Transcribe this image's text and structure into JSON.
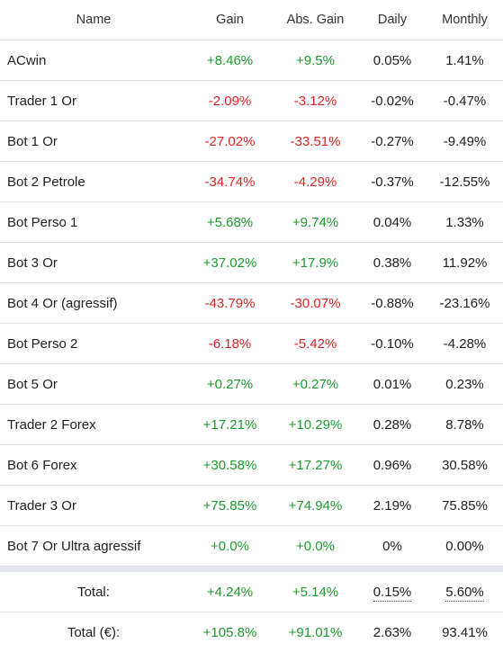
{
  "headers": {
    "name": "Name",
    "gain": "Gain",
    "abs_gain": "Abs. Gain",
    "daily": "Daily",
    "monthly": "Monthly"
  },
  "rows": [
    {
      "name": "ACwin",
      "gain": "+8.46%",
      "abs_gain": "+9.5%",
      "daily": "0.05%",
      "monthly": "1.41%",
      "trend": "positive"
    },
    {
      "name": "Trader 1 Or",
      "gain": "-2.09%",
      "abs_gain": "-3.12%",
      "daily": "-0.02%",
      "monthly": "-0.47%",
      "trend": "negative"
    },
    {
      "name": "Bot 1 Or",
      "gain": "-27.02%",
      "abs_gain": "-33.51%",
      "daily": "-0.27%",
      "monthly": "-9.49%",
      "trend": "negative"
    },
    {
      "name": "Bot 2 Petrole",
      "gain": "-34.74%",
      "abs_gain": "-4.29%",
      "daily": "-0.37%",
      "monthly": "-12.55%",
      "trend": "negative"
    },
    {
      "name": "Bot Perso 1",
      "gain": "+5.68%",
      "abs_gain": "+9.74%",
      "daily": "0.04%",
      "monthly": "1.33%",
      "trend": "positive"
    },
    {
      "name": "Bot 3 Or",
      "gain": "+37.02%",
      "abs_gain": "+17.9%",
      "daily": "0.38%",
      "monthly": "11.92%",
      "trend": "positive"
    },
    {
      "name": "Bot 4 Or (agressif)",
      "gain": "-43.79%",
      "abs_gain": "-30.07%",
      "daily": "-0.88%",
      "monthly": "-23.16%",
      "trend": "negative"
    },
    {
      "name": "Bot Perso 2",
      "gain": "-6.18%",
      "abs_gain": "-5.42%",
      "daily": "-0.10%",
      "monthly": "-4.28%",
      "trend": "negative"
    },
    {
      "name": "Bot 5 Or",
      "gain": "+0.27%",
      "abs_gain": "+0.27%",
      "daily": "0.01%",
      "monthly": "0.23%",
      "trend": "positive"
    },
    {
      "name": "Trader 2 Forex",
      "gain": "+17.21%",
      "abs_gain": "+10.29%",
      "daily": "0.28%",
      "monthly": "8.78%",
      "trend": "positive"
    },
    {
      "name": "Bot 6 Forex",
      "gain": "+30.58%",
      "abs_gain": "+17.27%",
      "daily": "0.96%",
      "monthly": "30.58%",
      "trend": "positive"
    },
    {
      "name": "Trader 3 Or",
      "gain": "+75.85%",
      "abs_gain": "+74.94%",
      "daily": "2.19%",
      "monthly": "75.85%",
      "trend": "positive"
    },
    {
      "name": "Bot 7 Or Ultra agressif",
      "gain": "+0.0%",
      "abs_gain": "+0.0%",
      "daily": "0%",
      "monthly": "0.00%",
      "trend": "positive"
    }
  ],
  "total": {
    "label": "Total:",
    "gain": "+4.24%",
    "abs_gain": "+5.14%",
    "daily": "0.15%",
    "monthly": "5.60%"
  },
  "total_eur": {
    "label": "Total (€):",
    "gain": "+105.8%",
    "abs_gain": "+91.01%",
    "daily": "2.63%",
    "monthly": "93.41%"
  },
  "colors": {
    "positive": "#1e9a2e",
    "negative": "#e02424",
    "separator": "#e4e8ee"
  }
}
